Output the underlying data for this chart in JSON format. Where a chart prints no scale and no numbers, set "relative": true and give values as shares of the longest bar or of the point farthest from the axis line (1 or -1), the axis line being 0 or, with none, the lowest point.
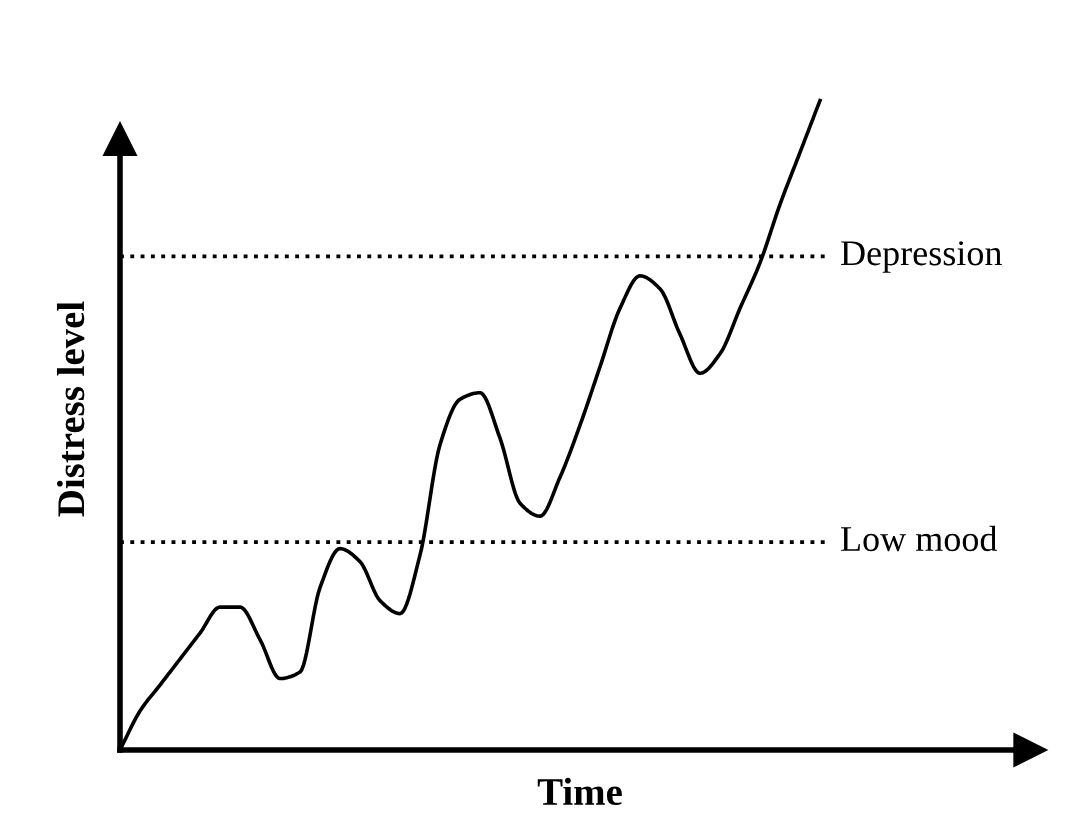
{
  "chart_data": {
    "type": "line",
    "relative": true,
    "xlabel": "Time",
    "ylabel": "Distress level",
    "categories": [
      null,
      null,
      null,
      null,
      null,
      null,
      null,
      null,
      null,
      null,
      null,
      null,
      null,
      null,
      null,
      null,
      null,
      null,
      null,
      null,
      null,
      null,
      null,
      null,
      null,
      null,
      null,
      null,
      null,
      null,
      null,
      null,
      null,
      null,
      null,
      null
    ],
    "series": [
      {
        "color": "#000000",
        "values": [
          0,
          0.06,
          0.1,
          0.14,
          0.18,
          0.22,
          0.22,
          0.17,
          0.11,
          0.12,
          0.25,
          0.31,
          0.29,
          0.23,
          0.21,
          0.3,
          0.47,
          0.54,
          0.55,
          0.48,
          0.38,
          0.36,
          0.42,
          0.5,
          0.59,
          0.68,
          0.73,
          0.71,
          0.64,
          0.58,
          0.61,
          0.68,
          0.75,
          0.84,
          0.92,
          1.0
        ]
      }
    ],
    "ref_lines": [
      {
        "axis": "y",
        "value": 0.76,
        "label": "Depression",
        "color": "#000000",
        "line_style": "dotted"
      },
      {
        "axis": "y",
        "value": 0.32,
        "label": "Low mood",
        "color": "#000000",
        "line_style": "dotted"
      }
    ],
    "marker": "none",
    "line_style": "solid"
  }
}
